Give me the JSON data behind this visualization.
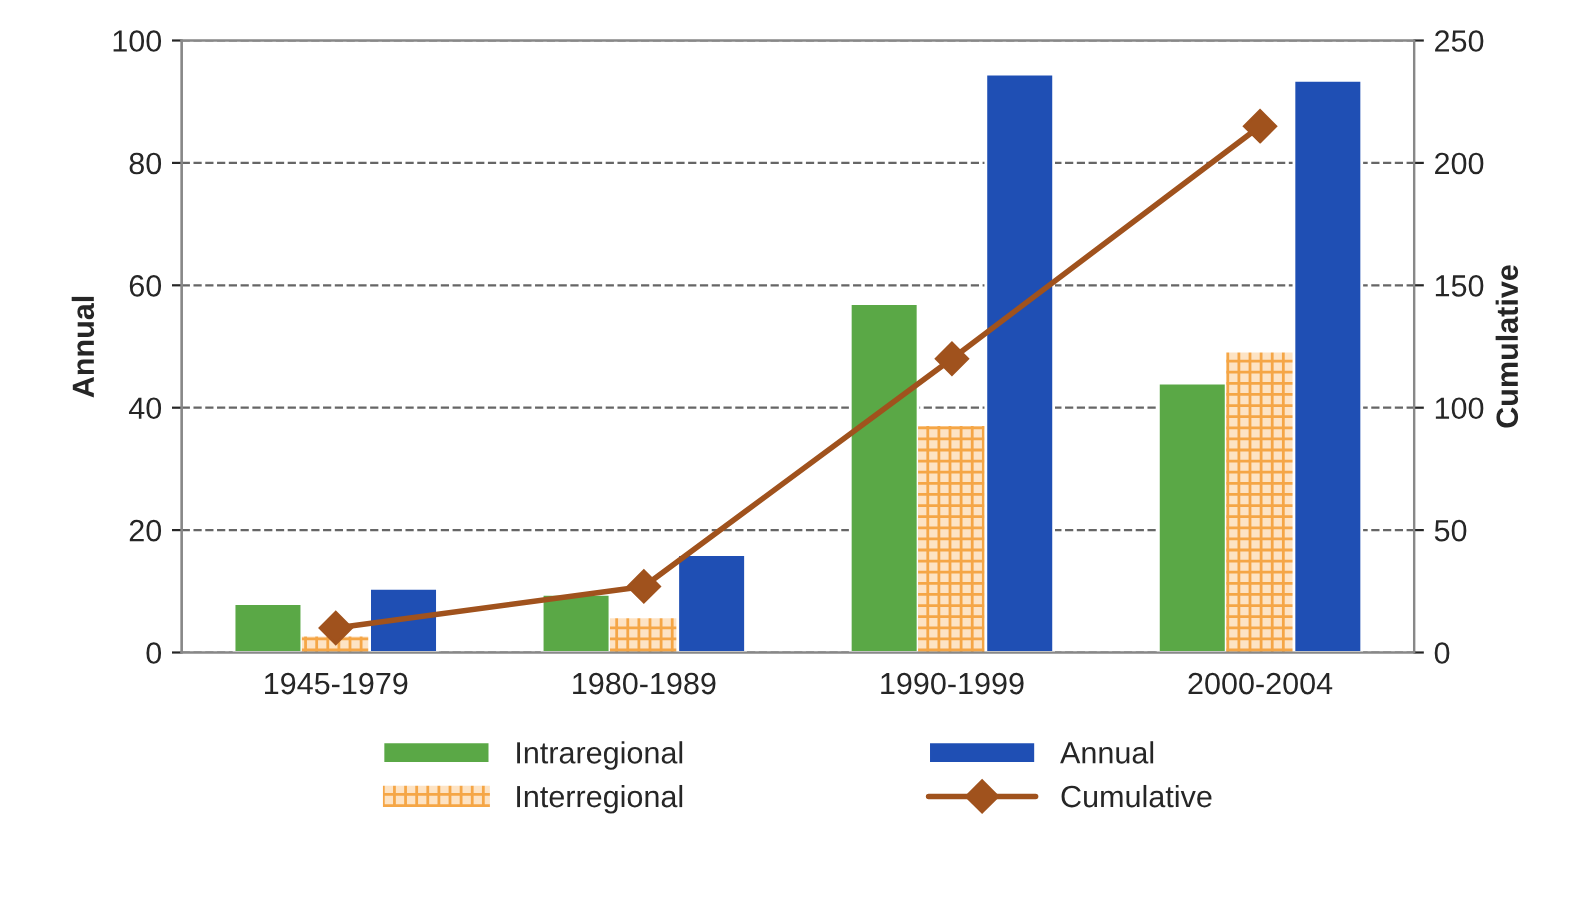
{
  "chart_data": {
    "type": "bar",
    "ylabel": "Annual",
    "y2label": "Cumulative",
    "categories": [
      "1945-1979",
      "1980-1989",
      "1990-1999",
      "2000-2004"
    ],
    "series": [
      {
        "name": "Intraregional",
        "color": "#5aa846",
        "values": [
          8,
          9.5,
          57,
          44
        ]
      },
      {
        "name": "Interregional",
        "color": "#f5a646",
        "values": [
          2.6,
          5.6,
          37,
          49
        ]
      },
      {
        "name": "Annual",
        "color": "#1f4fb4",
        "values": [
          10.5,
          16,
          94.5,
          93.5
        ]
      },
      {
        "name": "Cumulative",
        "type": "line",
        "axis": "y2",
        "color": "#a0521d",
        "marker": "diamond",
        "values": [
          10,
          27,
          120,
          215
        ]
      }
    ],
    "ylim": [
      0,
      100
    ],
    "yticks": [
      0,
      20,
      40,
      60,
      80,
      100
    ],
    "y2lim": [
      0,
      250
    ],
    "y2ticks": [
      0,
      50,
      100,
      150,
      200,
      250
    ],
    "grid": "y",
    "legend": "bottom"
  }
}
